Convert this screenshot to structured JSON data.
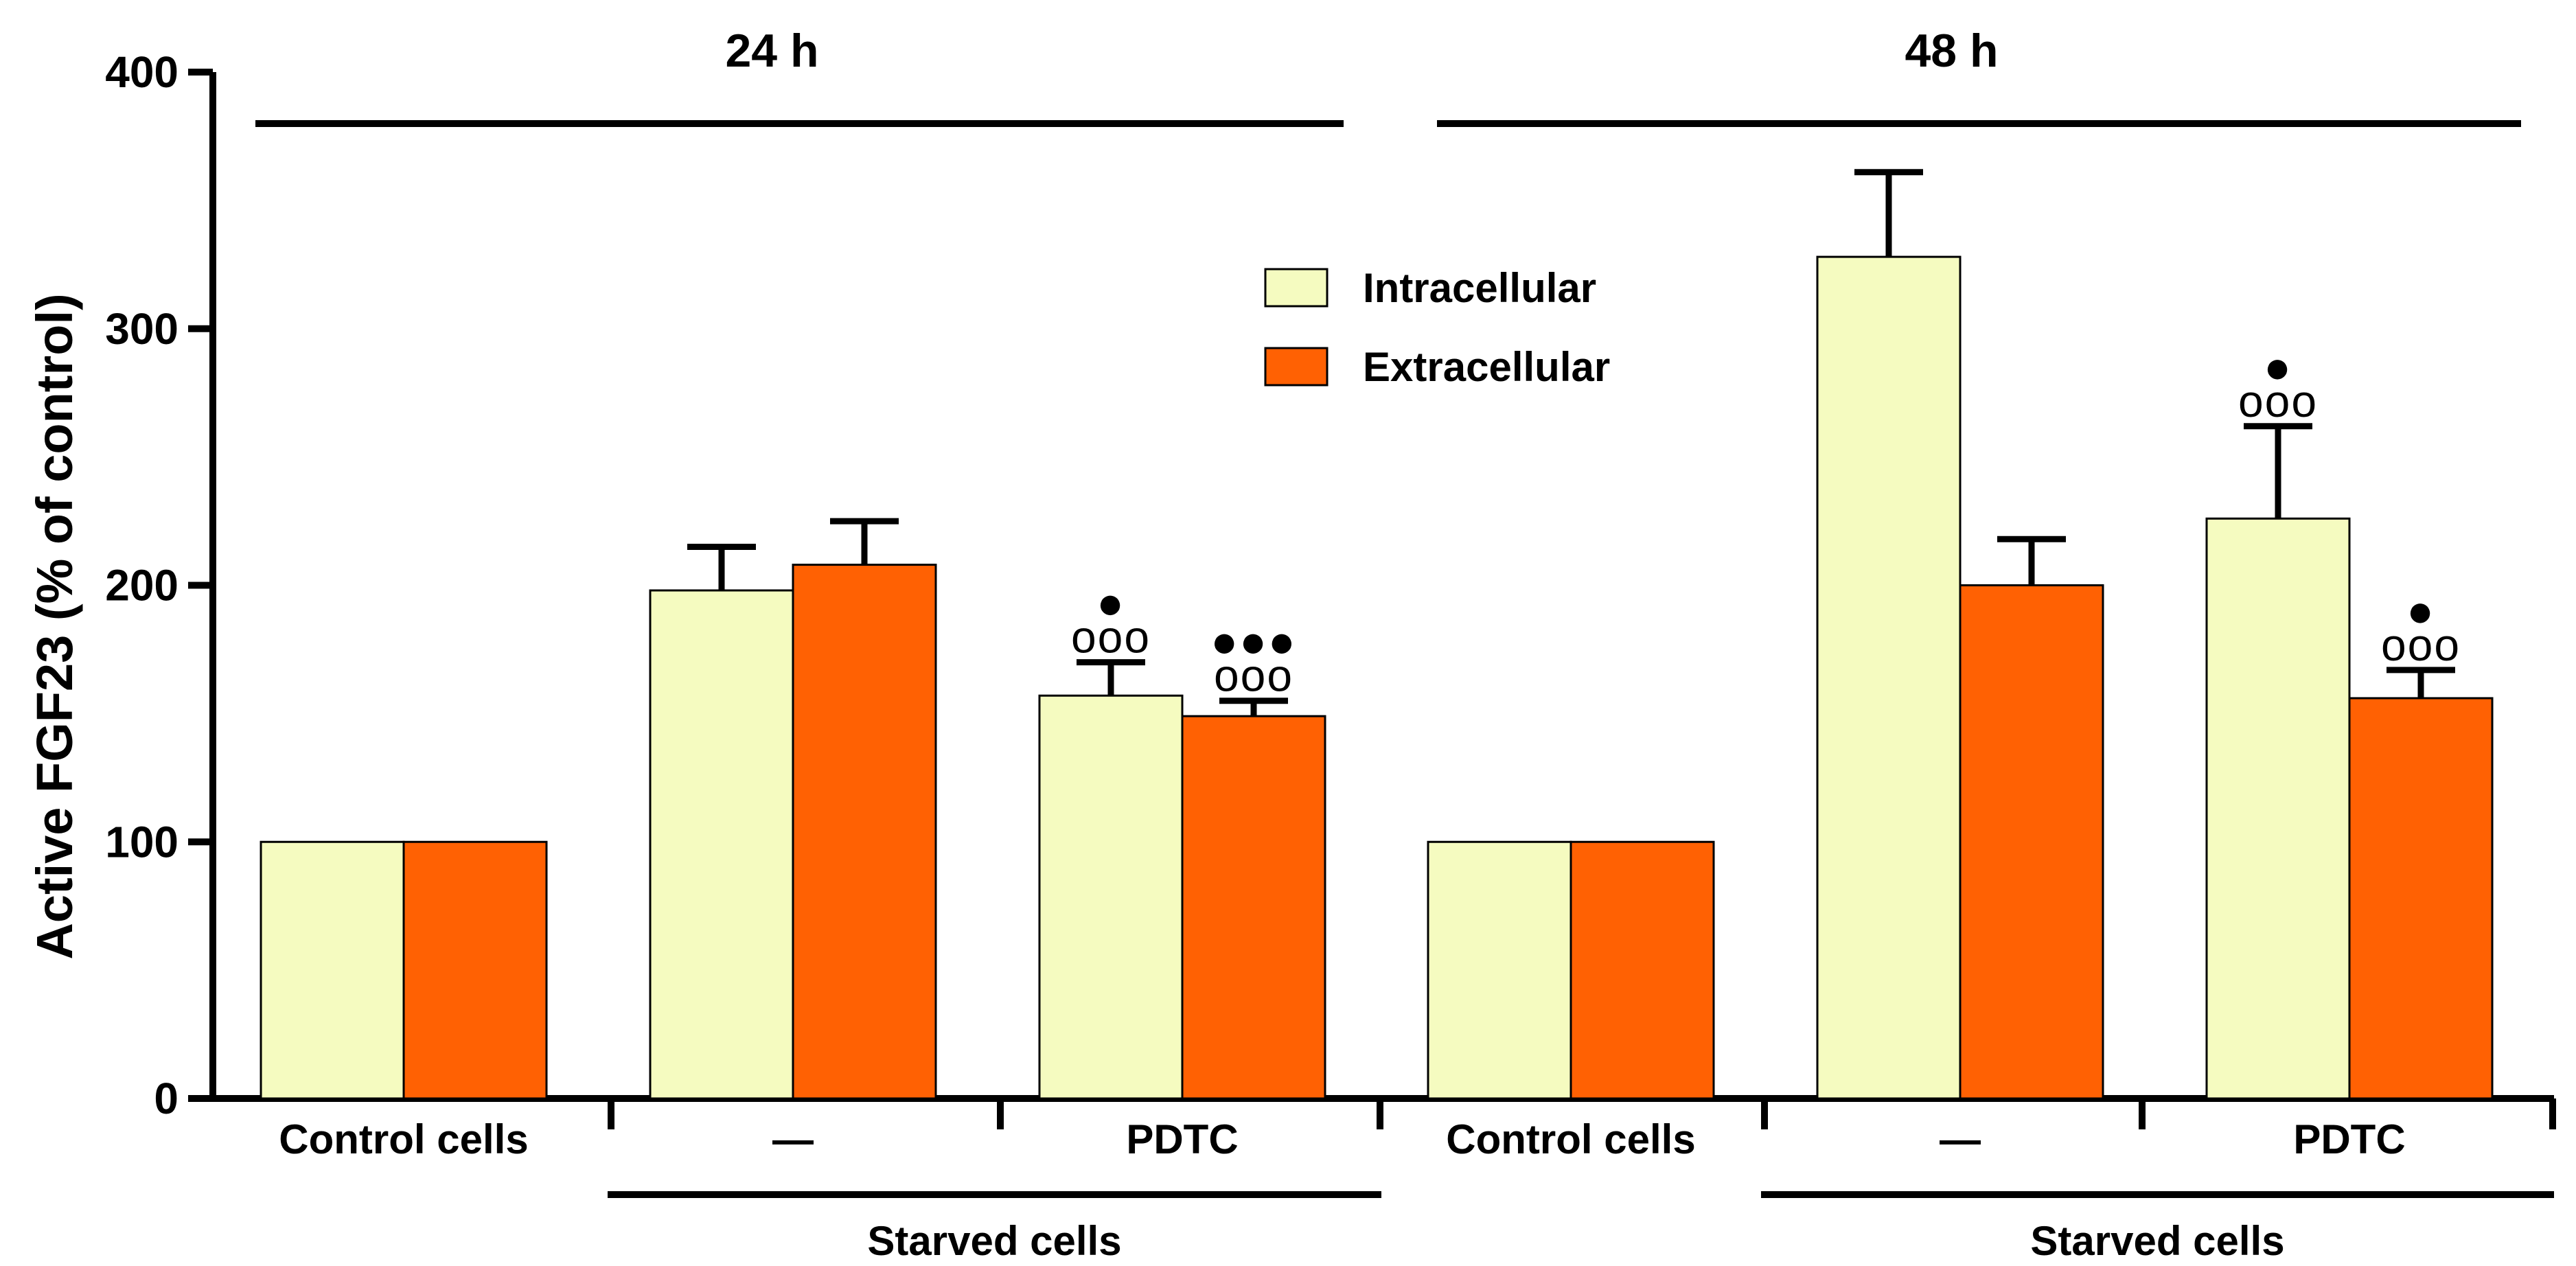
{
  "chart_data": {
    "type": "bar",
    "title": "",
    "xlabel": "",
    "ylabel": "Active FGF23 (% of control)",
    "ylim": [
      0,
      400
    ],
    "yticks": [
      0,
      100,
      200,
      300,
      400
    ],
    "grid": false,
    "legend_position": "upper-center",
    "categories": [
      "Control cells",
      "—",
      "PDTC",
      "Control cells",
      "—",
      "PDTC"
    ],
    "periods": [
      {
        "label": "24 h",
        "from": 0,
        "to": 2
      },
      {
        "label": "48 h",
        "from": 3,
        "to": 5
      }
    ],
    "bracket_groups": [
      {
        "label": "Starved cells",
        "from": 1,
        "to": 2
      },
      {
        "label": "Starved cells",
        "from": 4,
        "to": 5
      }
    ],
    "series": [
      {
        "name": "Intracellular",
        "color": "#f5fbc0",
        "values": [
          100,
          198,
          157,
          100,
          328,
          226
        ],
        "errors": [
          0,
          17,
          13,
          0,
          33,
          36
        ],
        "annotations": [
          "",
          "",
          "●\nooo",
          "",
          "",
          "●\nooo"
        ]
      },
      {
        "name": "Extracellular",
        "color": "#ff6103",
        "values": [
          100,
          208,
          149,
          100,
          200,
          156
        ],
        "errors": [
          0,
          17,
          6,
          0,
          18,
          11
        ],
        "annotations": [
          "",
          "",
          "●●●\nooo",
          "",
          "",
          "●\nooo"
        ]
      }
    ]
  }
}
